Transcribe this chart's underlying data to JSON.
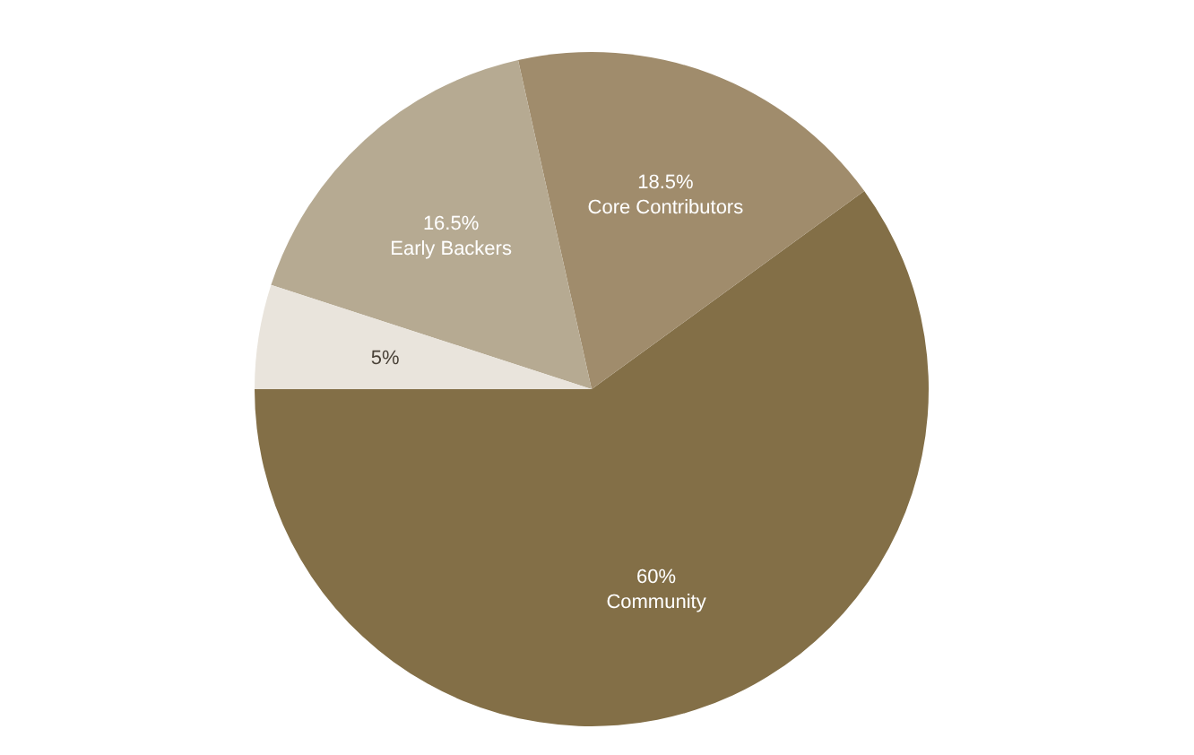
{
  "chart_data": {
    "type": "pie",
    "categories": [
      "Community",
      "Core Contributors",
      "Early Backers",
      null
    ],
    "values": [
      60,
      18.5,
      16.5,
      5
    ],
    "value_labels": [
      "60%",
      "18.5%",
      "16.5%",
      "5%"
    ],
    "colors": [
      "#836f47",
      "#a08c6c",
      "#b6aa92",
      "#e9e4dc"
    ],
    "legend": false
  }
}
